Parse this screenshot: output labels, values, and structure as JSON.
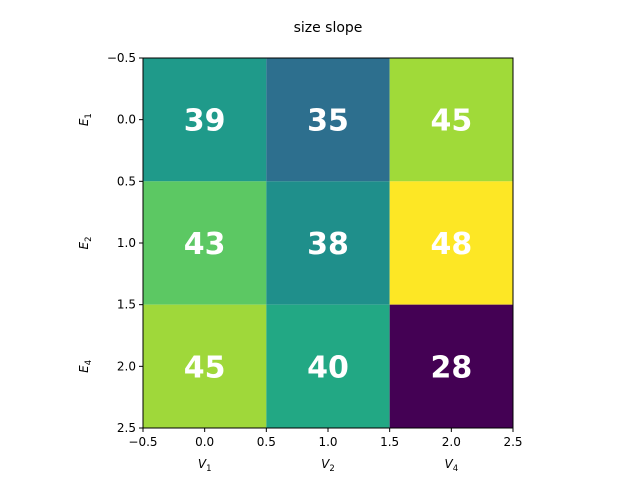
{
  "chart_data": {
    "type": "heatmap",
    "title": "size slope",
    "xlabel": "",
    "ylabel": "",
    "columns": [
      {
        "base": "V",
        "sub": "1"
      },
      {
        "base": "V",
        "sub": "2"
      },
      {
        "base": "V",
        "sub": "4"
      }
    ],
    "rows": [
      {
        "base": "E",
        "sub": "1"
      },
      {
        "base": "E",
        "sub": "2"
      },
      {
        "base": "E",
        "sub": "4"
      }
    ],
    "values": [
      [
        39,
        35,
        45
      ],
      [
        43,
        38,
        48
      ],
      [
        45,
        40,
        28
      ]
    ],
    "cell_colors": [
      [
        "#1f9a8a",
        "#2d6f8e",
        "#a0da39"
      ],
      [
        "#5cc863",
        "#1f8f8b",
        "#fde725"
      ],
      [
        "#9fd83a",
        "#22a884",
        "#440154"
      ]
    ],
    "xlim": [
      -0.5,
      2.5
    ],
    "ylim": [
      2.5,
      -0.5
    ],
    "xticks": [
      "−0.5",
      "0.0",
      "0.5",
      "1.0",
      "1.5",
      "2.0",
      "2.5"
    ],
    "yticks": [
      "−0.5",
      "0.0",
      "0.5",
      "1.0",
      "1.5",
      "2.0",
      "2.5"
    ],
    "colormap": "viridis",
    "grid": false,
    "legend": "none"
  }
}
